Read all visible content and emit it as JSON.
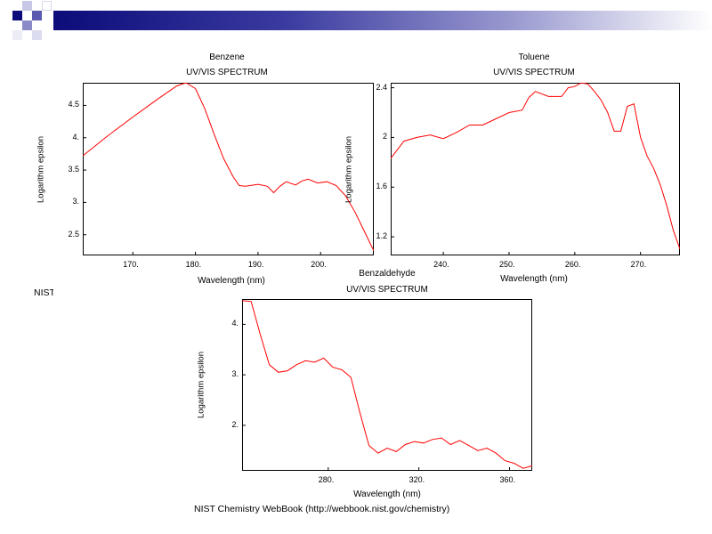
{
  "colors": {
    "banner_dark": "#0c0c7a",
    "banner_mid": "#5a5ab0",
    "line": "#ff0000"
  },
  "credits": {
    "left_fragment": "NIST",
    "bottom": "NIST Chemistry WebBook (http://webbook.nist.gov/chemistry)"
  },
  "chart_data": [
    {
      "id": "benzene",
      "type": "line",
      "title": "Benzene",
      "subtitle": "UV/VIS SPECTRUM",
      "xlabel": "Wavelength (nm)",
      "ylabel": "Logarithm epsilon",
      "xlim": [
        162,
        208.5
      ],
      "ylim": [
        2.18,
        4.85
      ],
      "xticks": [
        {
          "v": 170,
          "label": "170."
        },
        {
          "v": 180,
          "label": "180."
        },
        {
          "v": 190,
          "label": "190."
        },
        {
          "v": 200,
          "label": "200."
        }
      ],
      "yticks": [
        {
          "v": 2.5,
          "label": "2.5"
        },
        {
          "v": 3.0,
          "label": "3."
        },
        {
          "v": 3.5,
          "label": "3.5"
        },
        {
          "v": 4.0,
          "label": "4."
        },
        {
          "v": 4.5,
          "label": "4.5"
        }
      ],
      "series": [
        {
          "name": "Benzene",
          "x": [
            162,
            166,
            170,
            174,
            177,
            178.5,
            180,
            181.5,
            183,
            184.5,
            186,
            187,
            188,
            190,
            191.5,
            192.5,
            193.5,
            194.5,
            196,
            197,
            198,
            199.5,
            201,
            202.5,
            204,
            205.5,
            207,
            208.5
          ],
          "y": [
            3.72,
            4.03,
            4.32,
            4.6,
            4.8,
            4.85,
            4.76,
            4.45,
            4.05,
            3.68,
            3.4,
            3.26,
            3.25,
            3.28,
            3.25,
            3.15,
            3.25,
            3.32,
            3.27,
            3.33,
            3.36,
            3.3,
            3.32,
            3.26,
            3.1,
            2.85,
            2.55,
            2.25
          ]
        }
      ]
    },
    {
      "id": "toluene",
      "type": "line",
      "title": "Toluene",
      "subtitle": "UV/VIS SPECTRUM",
      "xlabel": "Wavelength (nm)",
      "ylabel": "Logarithm epsilon",
      "xlim": [
        232,
        276
      ],
      "ylim": [
        1.05,
        2.44
      ],
      "xticks": [
        {
          "v": 240,
          "label": "240."
        },
        {
          "v": 250,
          "label": "250."
        },
        {
          "v": 260,
          "label": "260."
        },
        {
          "v": 270,
          "label": "270."
        }
      ],
      "yticks": [
        {
          "v": 1.2,
          "label": "1.2"
        },
        {
          "v": 1.6,
          "label": "1.6"
        },
        {
          "v": 2.0,
          "label": "2"
        },
        {
          "v": 2.4,
          "label": "2.4"
        }
      ],
      "series": [
        {
          "name": "Toluene",
          "x": [
            232,
            234,
            236,
            238,
            240,
            242,
            244,
            246,
            248,
            250,
            252,
            253,
            254,
            256,
            258,
            259,
            260,
            261,
            262,
            263,
            264,
            265,
            266,
            267,
            268,
            269,
            270,
            271,
            272,
            273,
            274,
            275,
            276
          ],
          "y": [
            1.83,
            1.97,
            2.0,
            2.02,
            1.99,
            2.04,
            2.1,
            2.1,
            2.15,
            2.2,
            2.22,
            2.32,
            2.37,
            2.33,
            2.33,
            2.4,
            2.41,
            2.44,
            2.43,
            2.37,
            2.3,
            2.2,
            2.05,
            2.05,
            2.25,
            2.27,
            2.0,
            1.85,
            1.75,
            1.62,
            1.45,
            1.25,
            1.1
          ]
        }
      ]
    },
    {
      "id": "benzaldehyde",
      "type": "line",
      "title": "Benzaldehyde",
      "subtitle": "UV/VIS SPECTRUM",
      "xlabel": "Wavelength (nm)",
      "ylabel": "Logarithm epsilon",
      "xlim": [
        242,
        370
      ],
      "ylim": [
        1.1,
        4.5
      ],
      "xticks": [
        {
          "v": 280,
          "label": "280."
        },
        {
          "v": 320,
          "label": "320."
        },
        {
          "v": 360,
          "label": "360."
        }
      ],
      "yticks": [
        {
          "v": 2.0,
          "label": "2."
        },
        {
          "v": 3.0,
          "label": "3."
        },
        {
          "v": 4.0,
          "label": "4."
        }
      ],
      "series": [
        {
          "name": "Benzaldehyde",
          "x": [
            242,
            246,
            250,
            254,
            258,
            262,
            266,
            270,
            274,
            278,
            282,
            286,
            290,
            294,
            298,
            302,
            306,
            310,
            314,
            318,
            322,
            326,
            330,
            334,
            338,
            342,
            346,
            350,
            354,
            358,
            362,
            366,
            370
          ],
          "y": [
            4.47,
            4.45,
            3.8,
            3.2,
            3.05,
            3.08,
            3.2,
            3.28,
            3.25,
            3.33,
            3.15,
            3.1,
            2.95,
            2.25,
            1.6,
            1.45,
            1.55,
            1.48,
            1.62,
            1.68,
            1.65,
            1.72,
            1.75,
            1.62,
            1.7,
            1.6,
            1.5,
            1.55,
            1.45,
            1.3,
            1.25,
            1.15,
            1.2
          ]
        }
      ]
    }
  ]
}
